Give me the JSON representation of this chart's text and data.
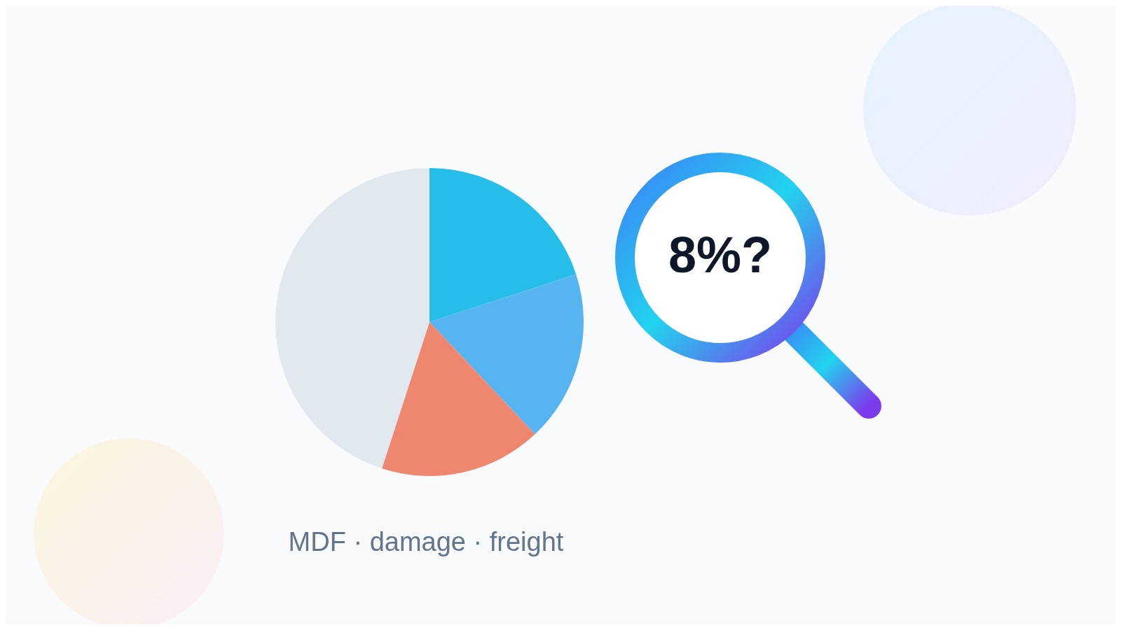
{
  "chart_data": {
    "type": "pie",
    "title": "MDF · damage · freight",
    "categories": [
      null,
      null,
      null,
      null
    ],
    "values": [
      20,
      18,
      17,
      45
    ],
    "colors": [
      "#27bde9",
      "#56b4f0",
      "#ee8670",
      "#e2e8f0"
    ],
    "annotations": [
      "8%?"
    ]
  }
}
